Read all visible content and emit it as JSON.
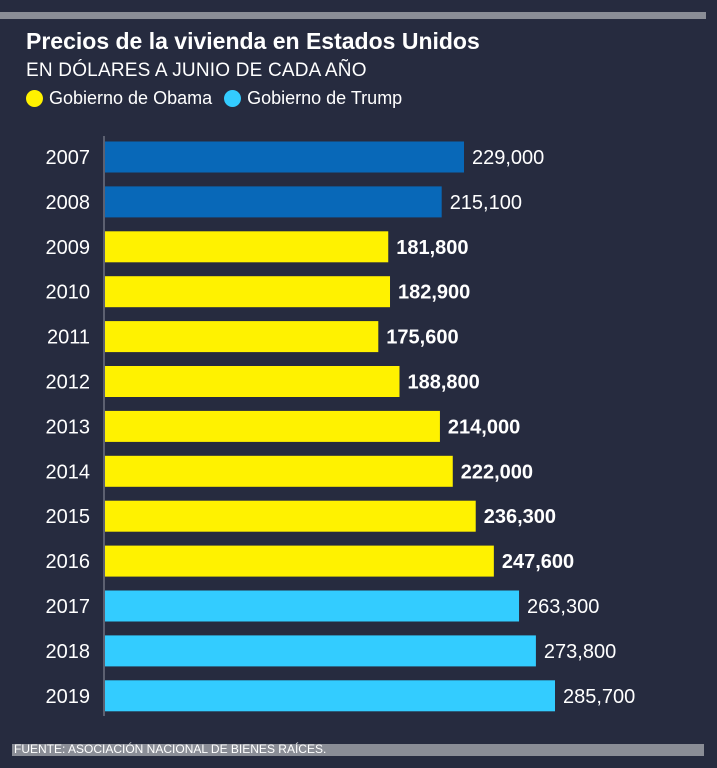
{
  "header": {
    "title": "Precios de la vivienda en Estados Unidos",
    "subtitle": "EN DÓLARES A JUNIO DE CADA AÑO"
  },
  "legend": [
    {
      "label": "Gobierno de Obama",
      "color": "#fff200"
    },
    {
      "label": "Gobierno de Trump",
      "color": "#33ccff"
    }
  ],
  "colors": {
    "bush": "#0868b8",
    "obama": "#fff200",
    "trump": "#33ccff",
    "background": "#262b3f",
    "axis": "#6f7280"
  },
  "footer": {
    "source": "FUENTE: ASOCIACIÓN NACIONAL DE BIENES RAÍCES."
  },
  "chart_data": {
    "type": "bar",
    "orientation": "horizontal",
    "title": "Precios de la vivienda en Estados Unidos",
    "subtitle": "EN DÓLARES A JUNIO DE CADA AÑO",
    "xlabel": "",
    "ylabel": "",
    "xlim": [
      0,
      290000
    ],
    "grid": false,
    "legend_position": "top-left",
    "categories": [
      "2007",
      "2008",
      "2009",
      "2010",
      "2011",
      "2012",
      "2013",
      "2014",
      "2015",
      "2016",
      "2017",
      "2018",
      "2019"
    ],
    "values": [
      229000,
      215100,
      181800,
      182900,
      175600,
      188800,
      214000,
      222000,
      236300,
      247600,
      263300,
      273800,
      285700
    ],
    "labels": [
      "229,000",
      "215,100",
      "181,800",
      "182,900",
      "175,600",
      "188,800",
      "214,000",
      "222,000",
      "236,300",
      "247,600",
      "263,300",
      "273,800",
      "285,700"
    ],
    "groups": [
      "bush",
      "bush",
      "obama",
      "obama",
      "obama",
      "obama",
      "obama",
      "obama",
      "obama",
      "obama",
      "trump",
      "trump",
      "trump"
    ],
    "label_bold": [
      false,
      false,
      true,
      true,
      true,
      true,
      true,
      true,
      true,
      true,
      false,
      false,
      false
    ]
  }
}
